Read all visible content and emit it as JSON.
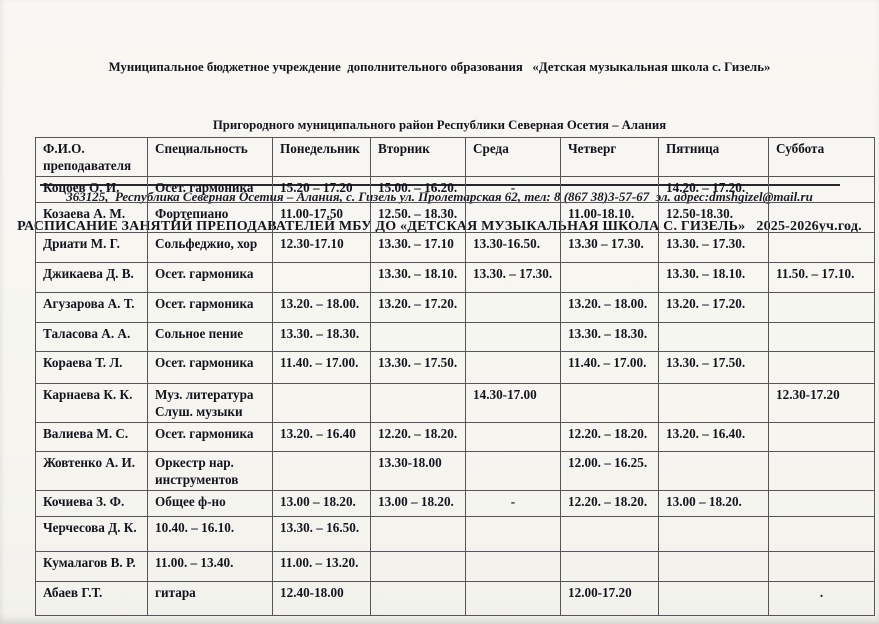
{
  "header": {
    "org_line1": "Муниципальное бюджетное учреждение  дополнительного образования   «Детская музыкальная школа с. Гизель»",
    "org_line2": "Пригородного муниципального район Республики Северная Осетия – Алания",
    "address": "363125,  Республика Северная Осетия – Алания, с. Гизель ул. Пролетарская 62, тел: 8 (867 38)3-57-67  эл. адрес:dmshgizel@mail.ru",
    "title": "РАСПИСАНИЕ ЗАНЯТИЙ ПРЕПОДАВАТЕЛЕЙ МБУ ДО «ДЕТСКАЯ МУЗЫКАЛЬНАЯ ШКОЛА С. ГИЗЕЛЬ»   2025-2026уч.год."
  },
  "table": {
    "columns": [
      "Ф.И.О.\nпреподавателя",
      "Специальность",
      "Понедельник",
      "Вторник",
      "Среда",
      "Четверг",
      "Пятница",
      "Суббота"
    ],
    "rows": [
      [
        "Коцоев О. И.",
        "Осет. гармоника",
        "15.20 – 17.20",
        "15.00. – 16.20.",
        "-",
        "",
        "14.20. – 17.20.",
        ""
      ],
      [
        "Козаева А. М.",
        "Фортепиано",
        "11.00-17.50",
        "12.50. – 18.30.",
        "",
        "11.00-18.10.",
        "12.50-18.30.",
        ""
      ],
      [
        "Дриати М. Г.",
        "Сольфеджио, хор",
        "12.30-17.10",
        "13.30. – 17.10",
        "13.30-16.50.",
        "13.30 – 17.30.",
        "13.30. – 17.30.",
        ""
      ],
      [
        "Джикаева Д. В.",
        "Осет. гармоника",
        "",
        "13.30. – 18.10.",
        "13.30. – 17.30.",
        "",
        "13.30. – 18.10.",
        "11.50. – 17.10."
      ],
      [
        "Агузарова А. Т.",
        "Осет. гармоника",
        "13.20. – 18.00.",
        "13.20. – 17.20.",
        "",
        "13.20. – 18.00.",
        "13.20. – 17.20.",
        ""
      ],
      [
        "Таласова А. А.",
        "Сольное пение",
        "13.30. – 18.30.",
        "",
        "",
        "13.30. – 18.30.",
        "",
        ""
      ],
      [
        "Кораева Т. Л.",
        "Осет. гармоника",
        "11.40. – 17.00.",
        "13.30. – 17.50.",
        "",
        "11.40. – 17.00.",
        "13.30. – 17.50.",
        ""
      ],
      [
        "Карнаева К. К.",
        "Муз. литература\nСлуш. музыки",
        "",
        "",
        "14.30-17.00",
        "",
        "",
        "12.30-17.20"
      ],
      [
        "Валиева М. С.",
        "Осет. гармоника",
        "13.20. – 16.40",
        "12.20. – 18.20.",
        "",
        "12.20. – 18.20.",
        "13.20. – 16.40.",
        ""
      ],
      [
        "Жовтенко А. И.",
        "Оркестр нар.\nинструментов",
        "",
        "13.30-18.00",
        "",
        "12.00. – 16.25.",
        "",
        ""
      ],
      [
        "Кочиева З. Ф.",
        "Общее ф-но",
        "13.00 – 18.20.",
        "13.00 – 18.20.",
        "-",
        "12.20. – 18.20.",
        "13.00 – 18.20.",
        ""
      ],
      [
        "Черчесова Д. К.",
        "10.40. – 16.10.",
        "13.30. – 16.50.",
        "",
        "",
        "",
        "",
        ""
      ],
      [
        "Кумалагов В. Р.",
        "11.00. – 13.40.",
        "11.00. – 13.20.",
        "",
        "",
        "",
        "",
        ""
      ],
      [
        "Абаев Г.Т.",
        "гитара",
        "12.40-18.00",
        "",
        "",
        "12.00-17.20",
        "",
        "."
      ]
    ]
  }
}
